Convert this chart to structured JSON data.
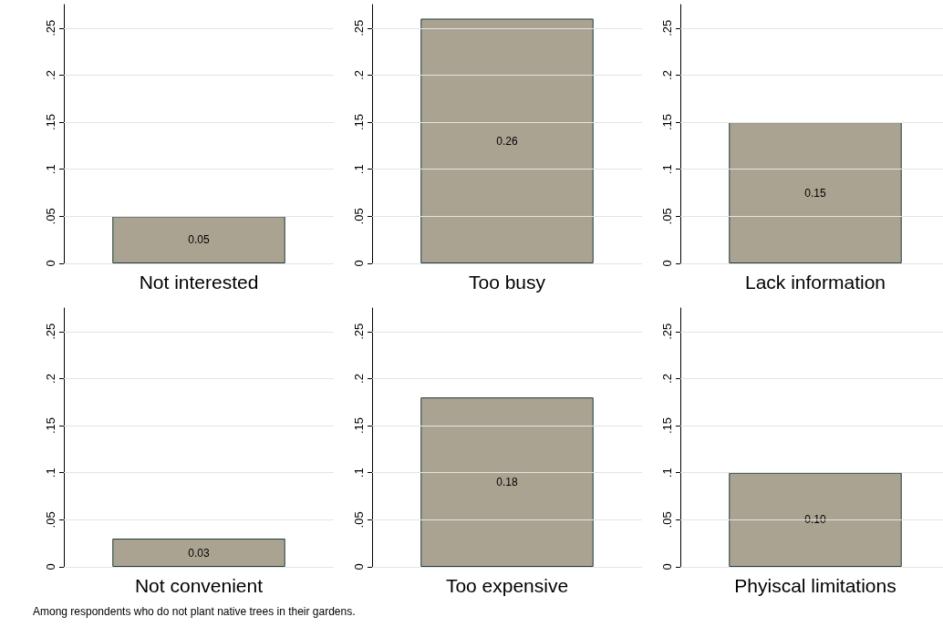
{
  "chart_data": [
    {
      "type": "bar",
      "categories": [
        "Not interested"
      ],
      "values": [
        0.05
      ],
      "value_labels": [
        "0.05"
      ],
      "color": "#aba391",
      "ylim": [
        0,
        0.275
      ],
      "yticks": [
        {
          "value": 0,
          "label": "0"
        },
        {
          "value": 0.05,
          "label": ".05"
        },
        {
          "value": 0.1,
          "label": ".1"
        },
        {
          "value": 0.15,
          "label": ".15"
        },
        {
          "value": 0.2,
          "label": ".2"
        },
        {
          "value": 0.25,
          "label": ".25"
        }
      ],
      "grid": "y"
    },
    {
      "type": "bar",
      "categories": [
        "Too busy"
      ],
      "values": [
        0.26
      ],
      "value_labels": [
        "0.26"
      ],
      "color": "#aba391",
      "ylim": [
        0,
        0.275
      ],
      "yticks": [
        {
          "value": 0,
          "label": "0"
        },
        {
          "value": 0.05,
          "label": ".05"
        },
        {
          "value": 0.1,
          "label": ".1"
        },
        {
          "value": 0.15,
          "label": ".15"
        },
        {
          "value": 0.2,
          "label": ".2"
        },
        {
          "value": 0.25,
          "label": ".25"
        }
      ],
      "grid": "y"
    },
    {
      "type": "bar",
      "categories": [
        "Lack information"
      ],
      "values": [
        0.15
      ],
      "value_labels": [
        "0.15"
      ],
      "color": "#aba391",
      "ylim": [
        0,
        0.275
      ],
      "yticks": [
        {
          "value": 0,
          "label": "0"
        },
        {
          "value": 0.05,
          "label": ".05"
        },
        {
          "value": 0.1,
          "label": ".1"
        },
        {
          "value": 0.15,
          "label": ".15"
        },
        {
          "value": 0.2,
          "label": ".2"
        },
        {
          "value": 0.25,
          "label": ".25"
        }
      ],
      "grid": "y"
    },
    {
      "type": "bar",
      "categories": [
        "Not convenient"
      ],
      "values": [
        0.03
      ],
      "value_labels": [
        "0.03"
      ],
      "color": "#aba391",
      "ylim": [
        0,
        0.275
      ],
      "yticks": [
        {
          "value": 0,
          "label": "0"
        },
        {
          "value": 0.05,
          "label": ".05"
        },
        {
          "value": 0.1,
          "label": ".1"
        },
        {
          "value": 0.15,
          "label": ".15"
        },
        {
          "value": 0.2,
          "label": ".2"
        },
        {
          "value": 0.25,
          "label": ".25"
        }
      ],
      "grid": "y"
    },
    {
      "type": "bar",
      "categories": [
        "Too expensive"
      ],
      "values": [
        0.18
      ],
      "value_labels": [
        "0.18"
      ],
      "color": "#aba391",
      "ylim": [
        0,
        0.275
      ],
      "yticks": [
        {
          "value": 0,
          "label": "0"
        },
        {
          "value": 0.05,
          "label": ".05"
        },
        {
          "value": 0.1,
          "label": ".1"
        },
        {
          "value": 0.15,
          "label": ".15"
        },
        {
          "value": 0.2,
          "label": ".2"
        },
        {
          "value": 0.25,
          "label": ".25"
        }
      ],
      "grid": "y"
    },
    {
      "type": "bar",
      "categories": [
        "Phyiscal limitations"
      ],
      "values": [
        0.1
      ],
      "value_labels": [
        "0.10"
      ],
      "color": "#aba391",
      "ylim": [
        0,
        0.275
      ],
      "yticks": [
        {
          "value": 0,
          "label": "0"
        },
        {
          "value": 0.05,
          "label": ".05"
        },
        {
          "value": 0.1,
          "label": ".1"
        },
        {
          "value": 0.15,
          "label": ".15"
        },
        {
          "value": 0.2,
          "label": ".2"
        },
        {
          "value": 0.25,
          "label": ".25"
        }
      ],
      "grid": "y",
      "annotations": [
        "Among respondents who do not plant native trees in their gardens."
      ]
    }
  ]
}
